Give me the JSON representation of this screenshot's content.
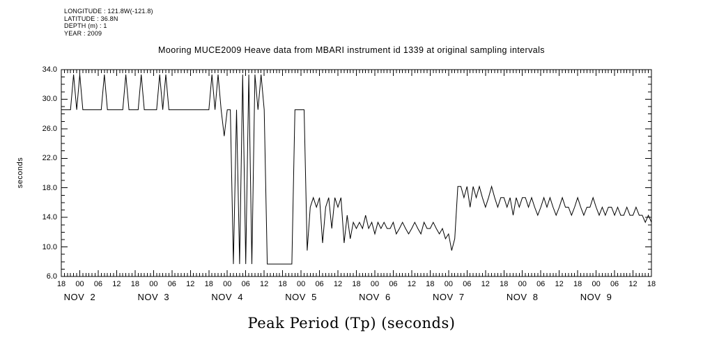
{
  "page": {
    "background": "#ffffff",
    "ink": "#000000"
  },
  "header": {
    "metadata_lines": [
      "LONGITUDE : 121.8W(-121.8)",
      "LATITUDE : 36.8N",
      "DEPTH (m) : 1",
      "YEAR : 2009"
    ],
    "title": "Mooring MUCE2009 Heave data from MBARI instrument id 1339 at original sampling intervals"
  },
  "chart_data": {
    "type": "line",
    "title": "Mooring MUCE2009 Heave data from MBARI instrument id 1339 at original sampling intervals",
    "xlabel": "Peak Period (Tp) (seconds)",
    "ylabel": "seconds",
    "ylim": [
      6.0,
      34.0
    ],
    "y_tick_values": [
      6,
      10,
      14,
      18,
      22,
      26,
      30,
      34
    ],
    "y_tick_labels": [
      "6.0",
      "10.0",
      "14.0",
      "18.0",
      "22.0",
      "26.0",
      "30.0",
      "34.0"
    ],
    "y_minor_tick_step": 1,
    "x_start": "NOV 1 2009 18:00",
    "x_range_hours": [
      0,
      192
    ],
    "x_major_tick_step_hours": 6,
    "x_minor_tick_step_hours": 1,
    "x_major_tick_labels": [
      "18",
      "00",
      "06",
      "12",
      "18",
      "00",
      "06",
      "12",
      "18",
      "00",
      "06",
      "12",
      "18",
      "00",
      "06",
      "12",
      "18",
      "00",
      "06",
      "12",
      "18",
      "00",
      "06",
      "12",
      "18",
      "00",
      "06",
      "12",
      "18",
      "00",
      "06",
      "12",
      "18"
    ],
    "day_labels": [
      {
        "label": "NOV  2",
        "hour": 6
      },
      {
        "label": "NOV  3",
        "hour": 30
      },
      {
        "label": "NOV  4",
        "hour": 54
      },
      {
        "label": "NOV  5",
        "hour": 78
      },
      {
        "label": "NOV  6",
        "hour": 102
      },
      {
        "label": "NOV  7",
        "hour": 126
      },
      {
        "label": "NOV  8",
        "hour": 150
      },
      {
        "label": "NOV  9",
        "hour": 174
      }
    ],
    "grid": false,
    "legend": false,
    "series": [
      {
        "name": "Peak Period (Tp)",
        "units": "seconds",
        "dt_hours": 1,
        "values": [
          28.57,
          28.57,
          28.57,
          28.57,
          33.33,
          28.57,
          33.33,
          28.57,
          28.57,
          28.57,
          28.57,
          28.57,
          28.57,
          28.57,
          33.33,
          28.57,
          28.57,
          28.57,
          28.57,
          28.57,
          28.57,
          33.33,
          28.57,
          28.57,
          28.57,
          28.57,
          33.33,
          28.57,
          28.57,
          28.57,
          28.57,
          28.57,
          33.33,
          28.57,
          33.33,
          28.57,
          28.57,
          28.57,
          28.57,
          28.57,
          28.57,
          28.57,
          28.57,
          28.57,
          28.57,
          28.57,
          28.57,
          28.57,
          28.57,
          33.33,
          28.57,
          33.33,
          28.57,
          25.0,
          28.57,
          28.57,
          7.69,
          28.57,
          7.69,
          33.33,
          7.69,
          33.33,
          7.69,
          33.33,
          28.57,
          33.33,
          28.57,
          7.69,
          7.69,
          7.69,
          7.69,
          7.69,
          7.69,
          7.69,
          7.69,
          7.69,
          28.57,
          28.57,
          28.57,
          28.57,
          9.52,
          15.38,
          16.67,
          15.38,
          16.67,
          10.53,
          15.38,
          16.67,
          12.5,
          16.67,
          15.38,
          16.67,
          10.53,
          14.29,
          11.11,
          13.33,
          12.5,
          13.33,
          12.5,
          14.29,
          12.5,
          13.33,
          11.76,
          13.33,
          12.5,
          13.33,
          12.5,
          12.5,
          13.33,
          11.76,
          12.5,
          13.33,
          12.5,
          11.76,
          12.5,
          13.33,
          12.5,
          11.76,
          13.33,
          12.5,
          12.5,
          13.33,
          12.5,
          11.76,
          12.5,
          11.11,
          11.76,
          9.52,
          11.11,
          18.18,
          18.18,
          16.67,
          18.18,
          15.38,
          18.18,
          16.67,
          18.18,
          16.67,
          15.38,
          16.67,
          18.18,
          16.67,
          15.38,
          16.67,
          16.67,
          15.38,
          16.67,
          14.29,
          16.67,
          15.38,
          16.67,
          16.67,
          15.38,
          16.67,
          15.38,
          14.29,
          15.38,
          16.67,
          15.38,
          16.67,
          15.38,
          14.29,
          15.38,
          16.67,
          15.38,
          15.38,
          14.29,
          15.38,
          16.67,
          15.38,
          14.29,
          15.38,
          15.38,
          16.67,
          15.38,
          14.29,
          15.38,
          14.29,
          15.38,
          15.38,
          14.29,
          15.38,
          14.29,
          14.29,
          15.38,
          14.29,
          14.29,
          15.38,
          14.29,
          14.29,
          13.33,
          14.29,
          13.33
        ]
      }
    ]
  }
}
